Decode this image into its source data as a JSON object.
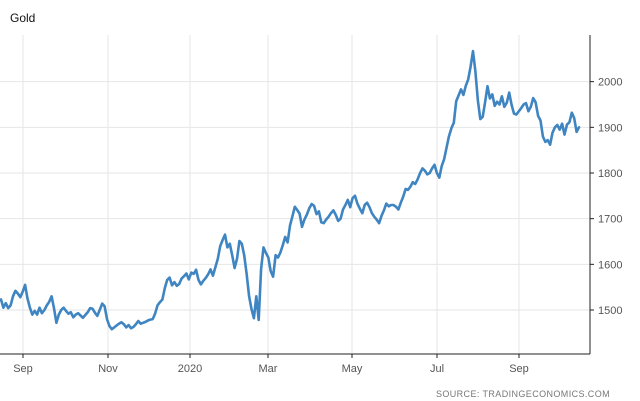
{
  "chart_data": {
    "type": "line",
    "title": "Gold",
    "source": "SOURCE: TRADINGECONOMICS.COM",
    "xlabel": "",
    "ylabel": "",
    "x_tick_labels": [
      "Sep",
      "Nov",
      "2020",
      "Mar",
      "May",
      "Jul",
      "Sep"
    ],
    "y_tick_labels": [
      "1500",
      "1600",
      "1700",
      "1800",
      "1900",
      "2000"
    ],
    "ylim": [
      1410,
      2110
    ],
    "grid": true,
    "colors": {
      "line": "#3f85c2",
      "grid": "#e6e6e6",
      "axis": "#222222"
    },
    "series": [
      {
        "values": [
          1523,
          1505,
          1515,
          1504,
          1510,
          1530,
          1542,
          1536,
          1528,
          1540,
          1555,
          1525,
          1505,
          1490,
          1498,
          1490,
          1505,
          1493,
          1500,
          1510,
          1518,
          1530,
          1504,
          1472,
          1490,
          1500,
          1505,
          1498,
          1492,
          1495,
          1484,
          1490,
          1493,
          1488,
          1483,
          1489,
          1495,
          1504,
          1503,
          1494,
          1487,
          1500,
          1514,
          1508,
          1480,
          1465,
          1458,
          1462,
          1466,
          1470,
          1473,
          1469,
          1462,
          1467,
          1460,
          1463,
          1469,
          1476,
          1470,
          1472,
          1474,
          1477,
          1479,
          1480,
          1492,
          1510,
          1517,
          1523,
          1548,
          1566,
          1571,
          1554,
          1561,
          1553,
          1557,
          1569,
          1574,
          1580,
          1567,
          1582,
          1579,
          1588,
          1566,
          1556,
          1564,
          1570,
          1578,
          1589,
          1575,
          1593,
          1612,
          1640,
          1653,
          1665,
          1637,
          1645,
          1620,
          1592,
          1612,
          1651,
          1645,
          1620,
          1578,
          1530,
          1502,
          1482,
          1530,
          1478,
          1590,
          1637,
          1625,
          1615,
          1585,
          1573,
          1620,
          1615,
          1626,
          1642,
          1660,
          1648,
          1685,
          1705,
          1726,
          1719,
          1711,
          1682,
          1698,
          1709,
          1723,
          1732,
          1728,
          1710,
          1716,
          1692,
          1690,
          1698,
          1704,
          1712,
          1718,
          1708,
          1695,
          1700,
          1720,
          1730,
          1741,
          1725,
          1745,
          1750,
          1733,
          1722,
          1712,
          1730,
          1735,
          1725,
          1712,
          1704,
          1698,
          1690,
          1706,
          1718,
          1733,
          1727,
          1730,
          1730,
          1726,
          1720,
          1735,
          1748,
          1765,
          1763,
          1770,
          1780,
          1776,
          1786,
          1800,
          1810,
          1805,
          1797,
          1800,
          1810,
          1818,
          1800,
          1790,
          1815,
          1830,
          1855,
          1880,
          1898,
          1910,
          1957,
          1970,
          1983,
          1971,
          1991,
          2005,
          2033,
          2067,
          2022,
          1958,
          1918,
          1923,
          1955,
          1990,
          1963,
          1972,
          1947,
          1956,
          1950,
          1968,
          1945,
          1954,
          1976,
          1949,
          1930,
          1928,
          1935,
          1942,
          1950,
          1953,
          1935,
          1945,
          1964,
          1955,
          1925,
          1915,
          1880,
          1868,
          1872,
          1862,
          1888,
          1900,
          1905,
          1895,
          1908,
          1884,
          1906,
          1911,
          1932,
          1920,
          1890,
          1900
        ]
      }
    ]
  }
}
